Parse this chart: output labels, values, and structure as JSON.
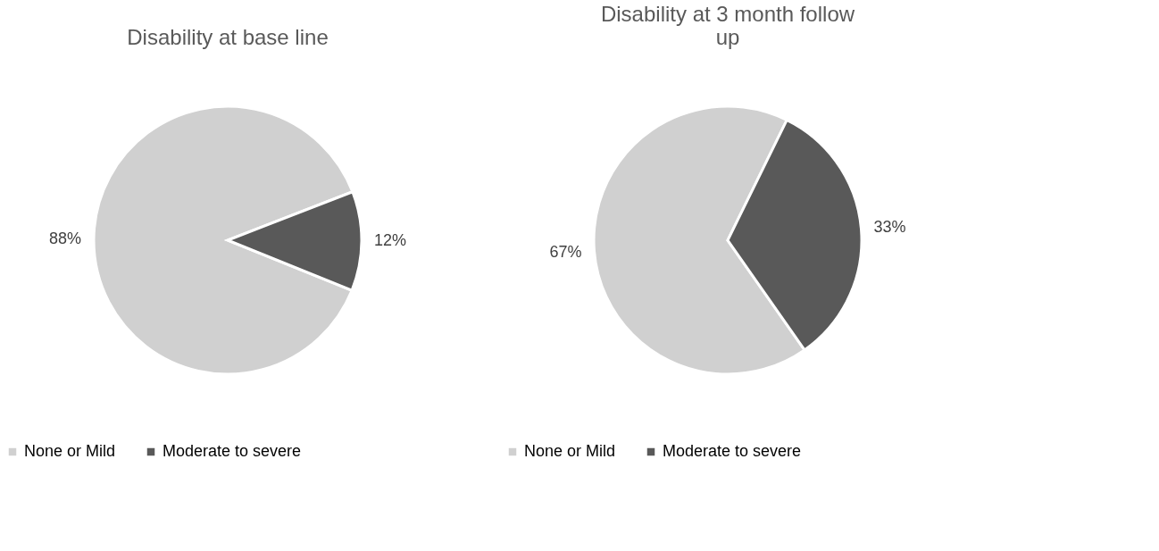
{
  "chart_data": [
    {
      "type": "pie",
      "title": "Disability at base line",
      "categories": [
        "None or Mild",
        "Moderate to severe"
      ],
      "values": [
        88,
        12
      ],
      "colors": [
        "#d0d0d0",
        "#595959"
      ],
      "value_labels": [
        "88%",
        "12%"
      ],
      "legend": "bottom"
    },
    {
      "type": "pie",
      "title": "Disability at 3 month follow up",
      "categories": [
        "None or Mild",
        "Moderate to severe"
      ],
      "values": [
        67,
        33
      ],
      "colors": [
        "#d0d0d0",
        "#595959"
      ],
      "value_labels": [
        "67%",
        "33%"
      ],
      "legend": "bottom"
    }
  ]
}
